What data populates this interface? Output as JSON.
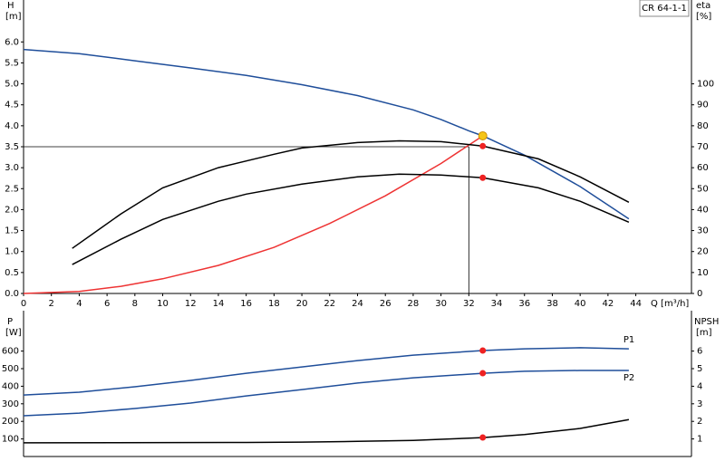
{
  "chart_data": [
    {
      "type": "line",
      "title": "CR 64-1-1",
      "y_label": "H",
      "y_unit": "[m]",
      "y2_label": "eta",
      "y2_unit": "[%]",
      "x_label": "Q [m³/h]",
      "xlim": [
        0,
        48
      ],
      "xticks": [
        0,
        2,
        4,
        6,
        8,
        10,
        12,
        14,
        16,
        18,
        20,
        22,
        24,
        26,
        28,
        30,
        32,
        34,
        36,
        38,
        40,
        42,
        44
      ],
      "ylim": [
        0,
        7
      ],
      "yticks": [
        {
          "value": 0,
          "label": "0.0"
        },
        {
          "value": 0.5,
          "label": "0.5"
        },
        {
          "value": 1,
          "label": "1.0"
        },
        {
          "value": 1.5,
          "label": "1.5"
        },
        {
          "value": 2,
          "label": "2.0"
        },
        {
          "value": 2.5,
          "label": "2.5"
        },
        {
          "value": 3,
          "label": "3.0"
        },
        {
          "value": 3.5,
          "label": "3.5"
        },
        {
          "value": 4,
          "label": "4.0"
        },
        {
          "value": 4.5,
          "label": "4.5"
        },
        {
          "value": 5,
          "label": "5.0"
        },
        {
          "value": 5.5,
          "label": "5.5"
        },
        {
          "value": 6,
          "label": "6.0"
        }
      ],
      "y2lim": [
        0,
        140
      ],
      "y2ticks": [
        0,
        10,
        20,
        30,
        40,
        50,
        60,
        70,
        80,
        90,
        100
      ],
      "series": [
        {
          "color": "#1f4e9a",
          "x": [
            0,
            4,
            8,
            12,
            16,
            20,
            24,
            28,
            30,
            32,
            33,
            36,
            40,
            43.5
          ],
          "values": [
            5.82,
            5.72,
            5.55,
            5.38,
            5.2,
            4.98,
            4.72,
            4.38,
            4.15,
            3.88,
            3.76,
            3.3,
            2.55,
            1.78
          ]
        },
        {
          "color": "#ee3333",
          "x": [
            0,
            4,
            7,
            10,
            14,
            18,
            22,
            26,
            30,
            33
          ],
          "values": [
            0,
            0.05,
            0.17,
            0.35,
            0.67,
            1.1,
            1.67,
            2.33,
            3.1,
            3.76
          ]
        },
        {
          "color": "#000000",
          "axis": "y2",
          "x": [
            3.5,
            7,
            10,
            14,
            18,
            20,
            24,
            27,
            30,
            33,
            37,
            40,
            43.5
          ],
          "values": [
            21.5,
            38,
            50.4,
            60,
            66.4,
            69.4,
            72,
            72.8,
            72.4,
            70.3,
            64.2,
            55.6,
            43.5
          ]
        },
        {
          "color": "#000000",
          "axis": "y2",
          "x": [
            3.5,
            7,
            10,
            14,
            16,
            20,
            24,
            27,
            30,
            33,
            37,
            40,
            43.5
          ],
          "values": [
            13.8,
            25.9,
            35.3,
            44,
            47.4,
            52.2,
            55.6,
            56.9,
            56.5,
            55.2,
            50.4,
            44,
            34
          ]
        }
      ],
      "reference_lines": {
        "x": 32,
        "y": 3.5
      },
      "markers": [
        {
          "x": 33,
          "y": 3.76,
          "color": "#f5c518"
        },
        {
          "x": 33,
          "y": 70.3,
          "axis": "y2",
          "color": "#ee2222"
        },
        {
          "x": 33,
          "y": 55.2,
          "axis": "y2",
          "color": "#ee2222"
        }
      ]
    },
    {
      "type": "line",
      "y_label": "P",
      "y_unit": "[W]",
      "y2_label": "NPSH",
      "y2_unit": "[m]",
      "xlim": [
        0,
        48
      ],
      "ylim": [
        0,
        830
      ],
      "yticks": [
        100,
        200,
        300,
        400,
        500,
        600
      ],
      "y2lim": [
        0,
        8.3
      ],
      "y2ticks": [
        1,
        2,
        3,
        4,
        5,
        6
      ],
      "series": [
        {
          "name": "P1",
          "color": "#1f4e9a",
          "x": [
            0,
            4,
            8,
            12,
            16,
            20,
            24,
            28,
            33,
            36,
            40,
            43.5
          ],
          "values": [
            350,
            366,
            397,
            433,
            474,
            510,
            546,
            577,
            603,
            613,
            619,
            613
          ]
        },
        {
          "name": "P2",
          "color": "#1f4e9a",
          "x": [
            0,
            4,
            8,
            12,
            16,
            20,
            24,
            28,
            33,
            36,
            40,
            43.5
          ],
          "values": [
            232,
            247,
            273,
            304,
            345,
            381,
            418,
            448,
            474,
            485,
            490,
            490
          ]
        },
        {
          "color": "#000000",
          "axis": "y2",
          "x": [
            0,
            16,
            20,
            24,
            28,
            30,
            33,
            36,
            40,
            43.5
          ],
          "values": [
            0.78,
            0.8,
            0.82,
            0.86,
            0.92,
            0.98,
            1.08,
            1.25,
            1.6,
            2.1
          ]
        }
      ],
      "markers": [
        {
          "x": 33,
          "y": 603,
          "color": "#ee2222"
        },
        {
          "x": 33,
          "y": 474,
          "color": "#ee2222"
        },
        {
          "x": 33,
          "y": 1.08,
          "axis": "y2",
          "color": "#ee2222"
        }
      ]
    }
  ]
}
